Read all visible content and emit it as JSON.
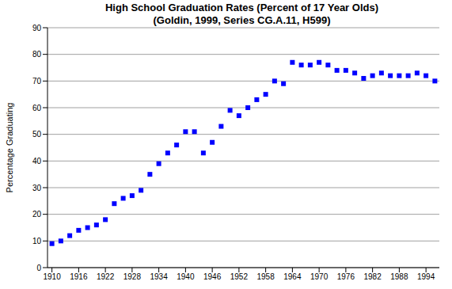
{
  "chart_data": {
    "type": "scatter",
    "title": "High School Graduation Rates (Percent of 17 Year Olds)",
    "subtitle": "(Goldin, 1999, Series CG.A.11, H599)",
    "y_label": "Percentage Graduating",
    "x": [
      1910,
      1912,
      1914,
      1916,
      1918,
      1920,
      1922,
      1924,
      1926,
      1928,
      1930,
      1932,
      1934,
      1936,
      1938,
      1940,
      1942,
      1944,
      1946,
      1948,
      1950,
      1952,
      1954,
      1956,
      1958,
      1960,
      1962,
      1964,
      1966,
      1968,
      1970,
      1972,
      1974,
      1976,
      1978,
      1980,
      1982,
      1984,
      1986,
      1988,
      1990,
      1992,
      1994,
      1996
    ],
    "values": [
      9,
      10,
      12,
      14,
      15,
      16,
      18,
      24,
      26,
      27,
      29,
      35,
      39,
      43,
      46,
      51,
      51,
      43,
      47,
      53,
      59,
      57,
      60,
      63,
      65,
      70,
      69,
      77,
      76,
      76,
      77,
      76,
      74,
      74,
      73,
      71,
      72,
      73,
      72,
      72,
      72,
      73,
      72,
      70
    ],
    "color": "#0000ff",
    "marker": "square",
    "xlim": [
      1909,
      1997
    ],
    "xticks": [
      1910,
      1916,
      1922,
      1928,
      1934,
      1940,
      1946,
      1952,
      1958,
      1964,
      1970,
      1976,
      1982,
      1988,
      1994
    ],
    "ylim": [
      0,
      90
    ],
    "yticks": [
      0,
      10,
      20,
      30,
      40,
      50,
      60,
      70,
      80,
      90
    ],
    "grid": true
  }
}
